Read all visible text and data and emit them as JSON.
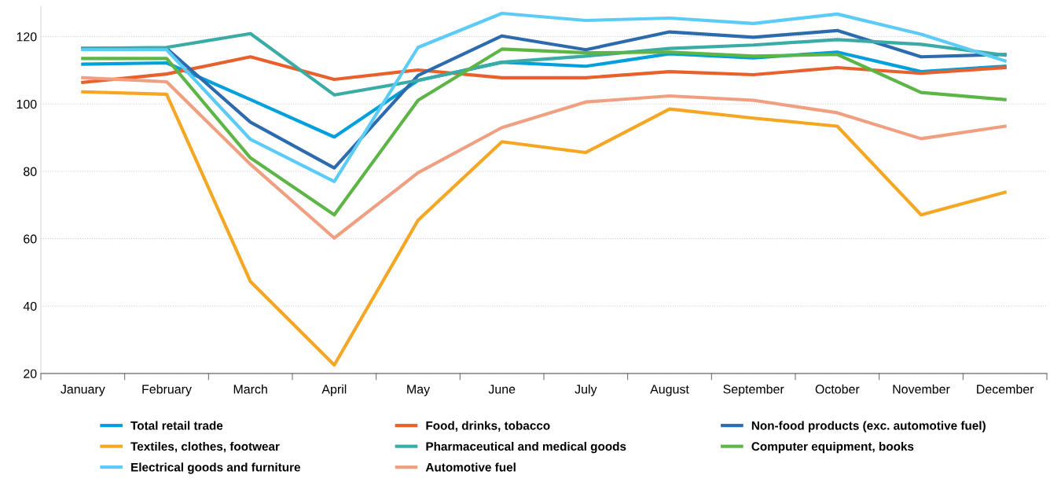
{
  "chart_data": {
    "type": "line",
    "categories": [
      "January",
      "February",
      "March",
      "April",
      "May",
      "June",
      "July",
      "August",
      "September",
      "October",
      "November",
      "December"
    ],
    "series": [
      {
        "name": "Total retail trade",
        "color": "#00a0dc",
        "values": [
          111.8,
          112.2,
          101.3,
          90.2,
          107.0,
          112.4,
          111.2,
          114.9,
          113.7,
          115.4,
          109.6,
          111.2
        ]
      },
      {
        "name": "Food, drinks, tobacco",
        "color": "#e8602c",
        "values": [
          106.4,
          108.9,
          114.0,
          107.3,
          110.1,
          107.8,
          107.8,
          109.6,
          108.7,
          110.8,
          109.1,
          110.8
        ]
      },
      {
        "name": "Non-food products (exc. automotive fuel)",
        "color": "#2c6bad",
        "values": [
          116.5,
          116.5,
          94.6,
          81.0,
          108.5,
          120.2,
          116.1,
          121.4,
          119.8,
          121.8,
          114.0,
          114.7
        ]
      },
      {
        "name": "Textiles, clothes, footwear",
        "color": "#f5a623",
        "values": [
          103.6,
          102.9,
          47.3,
          22.5,
          65.5,
          88.8,
          85.6,
          98.5,
          95.8,
          93.4,
          67.1,
          73.8
        ]
      },
      {
        "name": "Pharmaceutical and medical goods",
        "color": "#3aaba5",
        "values": [
          116.5,
          116.8,
          120.9,
          102.7,
          107.0,
          112.4,
          114.2,
          116.5,
          117.5,
          119.1,
          117.7,
          114.5
        ]
      },
      {
        "name": "Computer equipment, books",
        "color": "#5db546",
        "values": [
          113.5,
          113.5,
          84.0,
          67.1,
          101.1,
          116.3,
          115.2,
          115.4,
          114.2,
          114.7,
          103.4,
          101.3
        ]
      },
      {
        "name": "Electrical goods and furniture",
        "color": "#5ccbf5",
        "values": [
          116.1,
          116.1,
          89.5,
          77.0,
          116.8,
          126.9,
          124.8,
          125.5,
          123.9,
          126.7,
          120.7,
          112.8
        ]
      },
      {
        "name": "Automotive fuel",
        "color": "#f0a080",
        "values": [
          107.8,
          106.6,
          82.1,
          60.2,
          79.6,
          93.0,
          100.6,
          102.4,
          101.1,
          97.4,
          89.7,
          93.4
        ]
      }
    ],
    "ylim": [
      20,
      129
    ],
    "yticks": [
      20,
      40,
      60,
      80,
      100,
      120
    ],
    "grid": "y",
    "legend": "bottom",
    "marker": "none",
    "line_style": "solid"
  }
}
